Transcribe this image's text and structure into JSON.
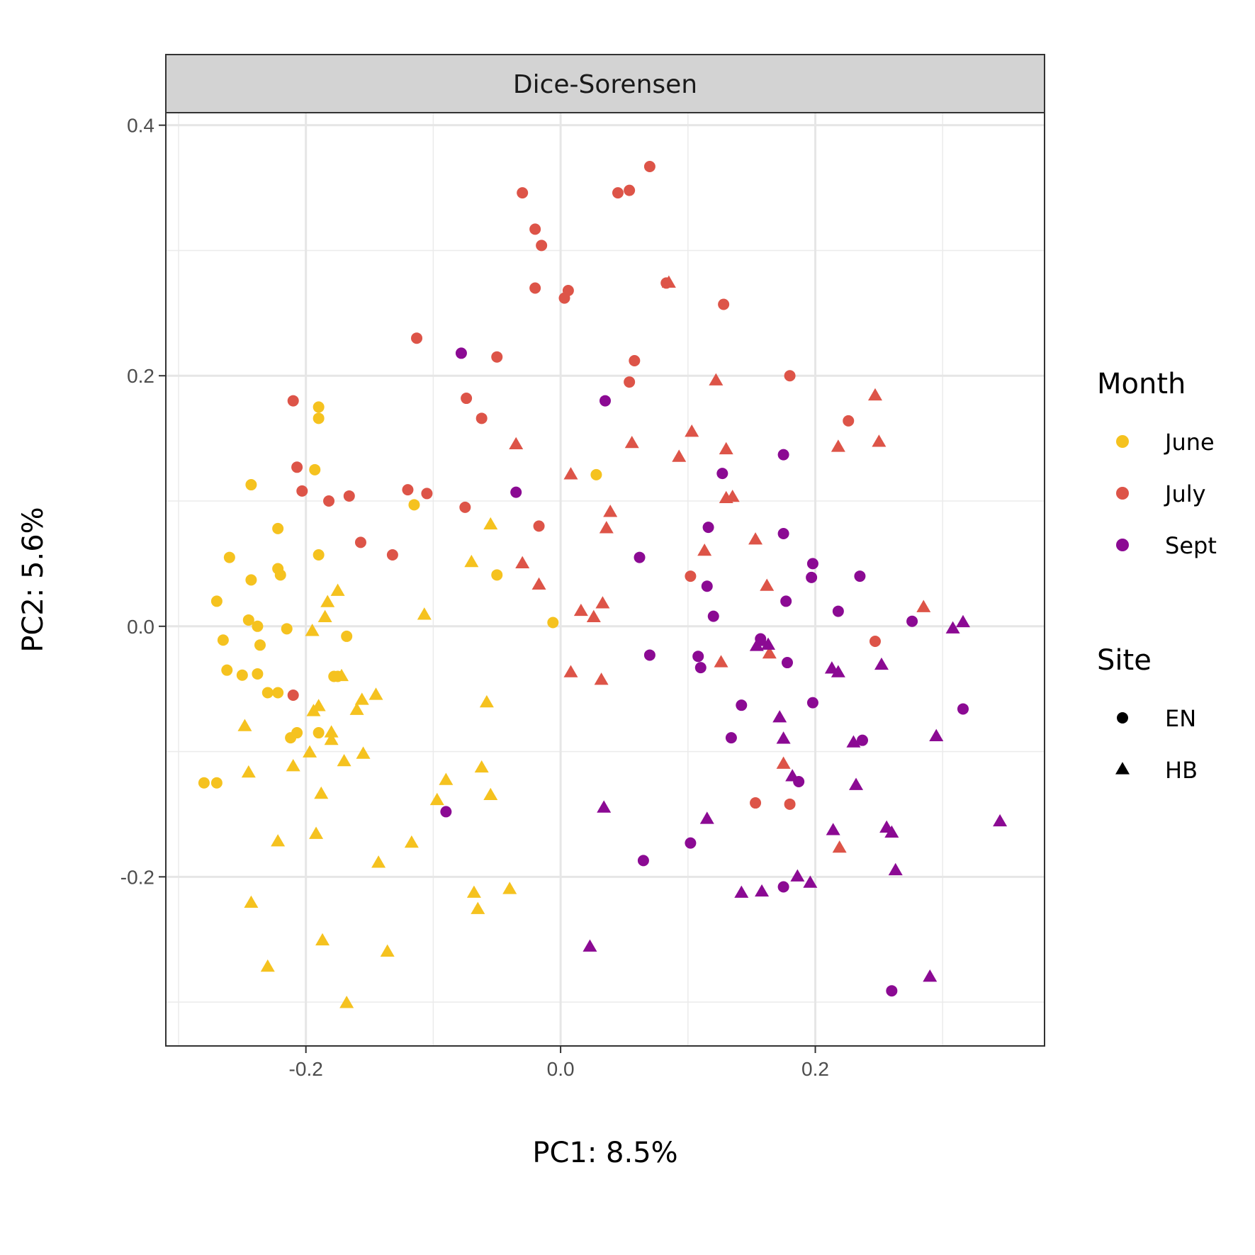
{
  "chart_data": {
    "type": "scatter",
    "facet_title": "Dice-Sorensen",
    "xlabel": "PC1:  8.5%",
    "ylabel": "PC2:  5.6%",
    "xlim": [
      -0.31,
      0.38
    ],
    "ylim": [
      -0.335,
      0.41
    ],
    "x_ticks": [
      -0.2,
      0.0,
      0.2
    ],
    "x_tick_labels": [
      "-0.2",
      "0.0",
      "0.2"
    ],
    "y_ticks": [
      -0.2,
      0.0,
      0.2,
      0.4
    ],
    "y_tick_labels": [
      "-0.2",
      "0.0",
      "0.2",
      "0.4"
    ],
    "grid": true,
    "legend_position": "right",
    "color_legend": {
      "title": "Month",
      "entries": [
        {
          "label": "June",
          "color": "#F5C21F"
        },
        {
          "label": "July",
          "color": "#DD5448"
        },
        {
          "label": "Sept",
          "color": "#8B0A93"
        }
      ]
    },
    "shape_legend": {
      "title": "Site",
      "entries": [
        {
          "label": "EN",
          "shape": "circle"
        },
        {
          "label": "HB",
          "shape": "triangle"
        }
      ]
    },
    "series": [
      {
        "month": "June",
        "site": "EN",
        "points": [
          [
            -0.28,
            -0.125
          ],
          [
            -0.27,
            -0.125
          ],
          [
            -0.265,
            -0.011
          ],
          [
            -0.26,
            0.055
          ],
          [
            -0.262,
            -0.035
          ],
          [
            -0.27,
            0.02
          ],
          [
            -0.245,
            0.005
          ],
          [
            -0.243,
            0.113
          ],
          [
            -0.243,
            0.037
          ],
          [
            -0.238,
            0.0
          ],
          [
            -0.236,
            -0.015
          ],
          [
            -0.238,
            -0.038
          ],
          [
            -0.25,
            -0.039
          ],
          [
            -0.23,
            -0.053
          ],
          [
            -0.222,
            -0.053
          ],
          [
            -0.222,
            0.078
          ],
          [
            -0.222,
            0.046
          ],
          [
            -0.22,
            0.041
          ],
          [
            -0.215,
            -0.002
          ],
          [
            -0.212,
            -0.089
          ],
          [
            -0.207,
            -0.085
          ],
          [
            -0.193,
            0.125
          ],
          [
            -0.19,
            0.175
          ],
          [
            -0.19,
            0.166
          ],
          [
            -0.19,
            0.057
          ],
          [
            -0.19,
            -0.085
          ],
          [
            -0.178,
            -0.04
          ],
          [
            -0.175,
            -0.04
          ],
          [
            -0.168,
            -0.008
          ],
          [
            -0.115,
            0.097
          ],
          [
            -0.05,
            0.041
          ],
          [
            -0.006,
            0.003
          ],
          [
            0.028,
            0.121
          ]
        ]
      },
      {
        "month": "June",
        "site": "HB",
        "points": [
          [
            -0.248,
            -0.08
          ],
          [
            -0.245,
            -0.117
          ],
          [
            -0.243,
            -0.221
          ],
          [
            -0.23,
            -0.272
          ],
          [
            -0.222,
            -0.172
          ],
          [
            -0.21,
            -0.112
          ],
          [
            -0.197,
            -0.101
          ],
          [
            -0.194,
            -0.068
          ],
          [
            -0.19,
            -0.064
          ],
          [
            -0.195,
            -0.004
          ],
          [
            -0.192,
            -0.166
          ],
          [
            -0.188,
            -0.134
          ],
          [
            -0.187,
            -0.251
          ],
          [
            -0.185,
            0.007
          ],
          [
            -0.183,
            0.019
          ],
          [
            -0.18,
            -0.085
          ],
          [
            -0.18,
            -0.091
          ],
          [
            -0.175,
            0.028
          ],
          [
            -0.172,
            -0.04
          ],
          [
            -0.17,
            -0.108
          ],
          [
            -0.168,
            -0.301
          ],
          [
            -0.16,
            -0.067
          ],
          [
            -0.156,
            -0.059
          ],
          [
            -0.155,
            -0.102
          ],
          [
            -0.145,
            -0.055
          ],
          [
            -0.143,
            -0.189
          ],
          [
            -0.136,
            -0.26
          ],
          [
            -0.117,
            -0.173
          ],
          [
            -0.107,
            0.009
          ],
          [
            -0.097,
            -0.139
          ],
          [
            -0.09,
            -0.123
          ],
          [
            -0.07,
            0.051
          ],
          [
            -0.068,
            -0.213
          ],
          [
            -0.065,
            -0.226
          ],
          [
            -0.062,
            -0.113
          ],
          [
            -0.058,
            -0.061
          ],
          [
            -0.055,
            0.081
          ],
          [
            -0.055,
            -0.135
          ],
          [
            -0.04,
            -0.21
          ]
        ]
      },
      {
        "month": "July",
        "site": "EN",
        "points": [
          [
            -0.21,
            0.18
          ],
          [
            -0.207,
            0.127
          ],
          [
            -0.21,
            -0.055
          ],
          [
            -0.203,
            0.108
          ],
          [
            -0.182,
            0.1
          ],
          [
            -0.166,
            0.104
          ],
          [
            -0.157,
            0.067
          ],
          [
            -0.132,
            0.057
          ],
          [
            -0.12,
            0.109
          ],
          [
            -0.113,
            0.23
          ],
          [
            -0.105,
            0.106
          ],
          [
            -0.075,
            0.095
          ],
          [
            -0.074,
            0.182
          ],
          [
            -0.062,
            0.166
          ],
          [
            -0.05,
            0.215
          ],
          [
            -0.03,
            0.346
          ],
          [
            -0.02,
            0.317
          ],
          [
            -0.02,
            0.27
          ],
          [
            -0.017,
            0.08
          ],
          [
            -0.015,
            0.304
          ],
          [
            0.003,
            0.262
          ],
          [
            0.006,
            0.268
          ],
          [
            0.045,
            0.346
          ],
          [
            0.054,
            0.348
          ],
          [
            0.054,
            0.195
          ],
          [
            0.058,
            0.212
          ],
          [
            0.07,
            0.367
          ],
          [
            0.083,
            0.274
          ],
          [
            0.102,
            0.04
          ],
          [
            0.128,
            0.257
          ],
          [
            0.153,
            -0.141
          ],
          [
            0.18,
            0.2
          ],
          [
            0.18,
            -0.142
          ],
          [
            0.226,
            0.164
          ],
          [
            0.247,
            -0.012
          ]
        ]
      },
      {
        "month": "July",
        "site": "HB",
        "points": [
          [
            -0.035,
            0.145
          ],
          [
            -0.03,
            0.05
          ],
          [
            -0.017,
            0.033
          ],
          [
            0.008,
            -0.037
          ],
          [
            0.008,
            0.121
          ],
          [
            0.016,
            0.012
          ],
          [
            0.026,
            0.007
          ],
          [
            0.032,
            -0.043
          ],
          [
            0.033,
            0.018
          ],
          [
            0.036,
            0.078
          ],
          [
            0.039,
            0.091
          ],
          [
            0.056,
            0.146
          ],
          [
            0.085,
            0.274
          ],
          [
            0.093,
            0.135
          ],
          [
            0.103,
            0.155
          ],
          [
            0.113,
            0.06
          ],
          [
            0.122,
            0.196
          ],
          [
            0.126,
            -0.029
          ],
          [
            0.13,
            0.141
          ],
          [
            0.13,
            0.102
          ],
          [
            0.135,
            0.103
          ],
          [
            0.153,
            0.069
          ],
          [
            0.162,
            0.032
          ],
          [
            0.164,
            -0.022
          ],
          [
            0.175,
            -0.11
          ],
          [
            0.218,
            0.143
          ],
          [
            0.219,
            -0.177
          ],
          [
            0.247,
            0.184
          ],
          [
            0.25,
            0.147
          ],
          [
            0.285,
            0.015
          ]
        ]
      },
      {
        "month": "Sept",
        "site": "EN",
        "points": [
          [
            -0.078,
            0.218
          ],
          [
            -0.09,
            -0.148
          ],
          [
            -0.035,
            0.107
          ],
          [
            0.035,
            0.18
          ],
          [
            0.062,
            0.055
          ],
          [
            0.07,
            -0.023
          ],
          [
            0.065,
            -0.187
          ],
          [
            0.102,
            -0.173
          ],
          [
            0.108,
            -0.024
          ],
          [
            0.11,
            -0.033
          ],
          [
            0.115,
            0.032
          ],
          [
            0.116,
            0.079
          ],
          [
            0.12,
            0.008
          ],
          [
            0.127,
            0.122
          ],
          [
            0.134,
            -0.089
          ],
          [
            0.142,
            -0.063
          ],
          [
            0.157,
            -0.01
          ],
          [
            0.175,
            0.137
          ],
          [
            0.175,
            0.074
          ],
          [
            0.177,
            0.02
          ],
          [
            0.178,
            -0.029
          ],
          [
            0.175,
            -0.208
          ],
          [
            0.187,
            -0.124
          ],
          [
            0.198,
            0.05
          ],
          [
            0.197,
            0.039
          ],
          [
            0.198,
            -0.061
          ],
          [
            0.218,
            0.012
          ],
          [
            0.235,
            0.04
          ],
          [
            0.237,
            -0.091
          ],
          [
            0.26,
            -0.291
          ],
          [
            0.276,
            0.004
          ],
          [
            0.316,
            -0.066
          ]
        ]
      },
      {
        "month": "Sept",
        "site": "HB",
        "points": [
          [
            0.023,
            -0.256
          ],
          [
            0.034,
            -0.145
          ],
          [
            0.115,
            -0.154
          ],
          [
            0.142,
            -0.213
          ],
          [
            0.154,
            -0.016
          ],
          [
            0.158,
            -0.012
          ],
          [
            0.158,
            -0.212
          ],
          [
            0.163,
            -0.015
          ],
          [
            0.172,
            -0.073
          ],
          [
            0.175,
            -0.09
          ],
          [
            0.182,
            -0.12
          ],
          [
            0.186,
            -0.2
          ],
          [
            0.196,
            -0.205
          ],
          [
            0.213,
            -0.034
          ],
          [
            0.214,
            -0.163
          ],
          [
            0.218,
            -0.037
          ],
          [
            0.23,
            -0.093
          ],
          [
            0.232,
            -0.127
          ],
          [
            0.252,
            -0.031
          ],
          [
            0.256,
            -0.161
          ],
          [
            0.26,
            -0.165
          ],
          [
            0.263,
            -0.195
          ],
          [
            0.29,
            -0.28
          ],
          [
            0.295,
            -0.088
          ],
          [
            0.308,
            -0.002
          ],
          [
            0.316,
            0.003
          ],
          [
            0.345,
            -0.156
          ]
        ]
      }
    ]
  }
}
